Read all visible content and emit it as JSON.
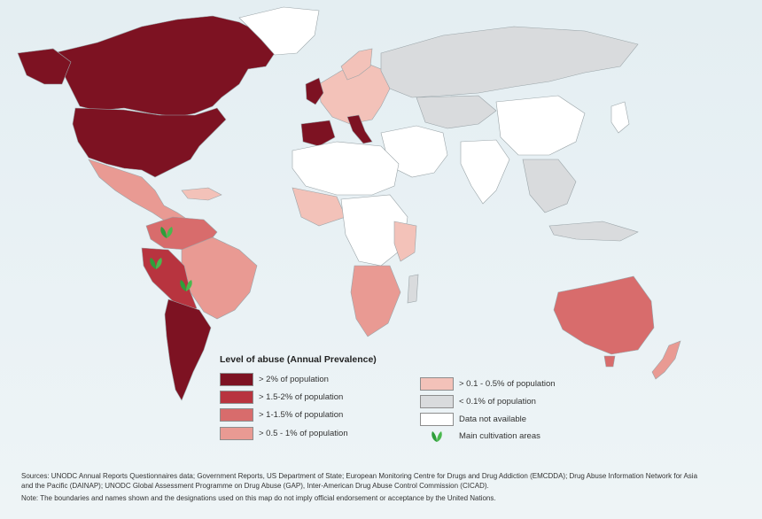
{
  "legend": {
    "title": "Level of abuse (Annual  Prevalence)",
    "items": [
      {
        "label": "> 2% of population",
        "color": "#7d1222"
      },
      {
        "label": "> 1.5-2% of population",
        "color": "#b8343f"
      },
      {
        "label": "> 1-1.5% of  population",
        "color": "#d86c6c"
      },
      {
        "label": "> 0.5 - 1% of population",
        "color": "#e99a93"
      },
      {
        "label": "> 0.1 - 0.5% of  population",
        "color": "#f3c2b9"
      },
      {
        "label": "< 0.1%  of  population",
        "color": "#d9dbdd"
      },
      {
        "label": "Data not available",
        "color": "#ffffff"
      },
      {
        "label": "Main cultivation areas",
        "icon": "leaf-icon",
        "color": "#2e9e3a"
      }
    ]
  },
  "footer": {
    "sources_line1": "Sources: UNODC Annual Reports Questionnaires data; Government Reports, US Department of State; European Monitoring Centre for Drugs and Drug Addiction (EMCDDA); Drug Abuse Information Network for Asia",
    "sources_line2": "and the Pacific (DAINAP); UNODC Global Assessment Programme on Drug Abuse (GAP), Inter-American Drug Abuse Control Commission (CICAD).",
    "note": "Note:  The boundaries and names shown and the designations used on this map do not imply official endorsement or acceptance by the United Nations."
  },
  "colors": {
    "ocean": "#e7f0f3",
    "border": "#9aa4a8"
  }
}
